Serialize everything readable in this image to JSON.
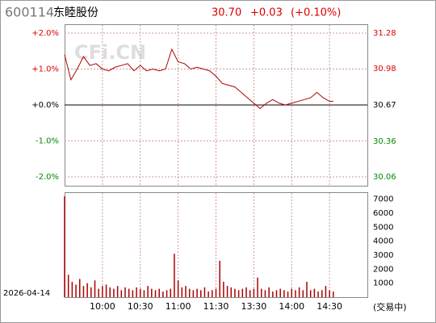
{
  "chart_data": {
    "type": "line",
    "code": "600114",
    "name": "东睦股份",
    "price": "30.70",
    "change": "+0.03",
    "change_pct": "(+0.10%)",
    "watermark": "CFi.CN",
    "date": "2026-04-14",
    "status": "(交易中)",
    "color": "#b00000",
    "xlim": [
      0,
      240
    ],
    "xticks": [
      {
        "value": 30,
        "label": "10:00"
      },
      {
        "value": 60,
        "label": "10:30"
      },
      {
        "value": 90,
        "label": "11:00"
      },
      {
        "value": 120,
        "label": "11:30"
      },
      {
        "value": 150,
        "label": "13:30"
      },
      {
        "value": 180,
        "label": "14:00"
      },
      {
        "value": 210,
        "label": "14:30"
      }
    ],
    "ylim": [
      -2,
      2
    ],
    "yticks": [
      {
        "value": 2,
        "label": "+2.0%"
      },
      {
        "value": 1,
        "label": "+1.0%"
      },
      {
        "value": 0,
        "label": "+0.0%"
      },
      {
        "value": -1,
        "label": "-1.0%"
      },
      {
        "value": -2,
        "label": "-2.0%"
      }
    ],
    "y2lim": [
      30.06,
      31.28
    ],
    "y2ticks": [
      31.28,
      30.98,
      30.67,
      30.36,
      30.06
    ],
    "x": [
      0,
      5,
      10,
      15,
      20,
      25,
      30,
      35,
      40,
      45,
      50,
      55,
      60,
      65,
      70,
      75,
      80,
      85,
      90,
      95,
      100,
      105,
      110,
      115,
      120,
      125,
      130,
      135,
      140,
      145,
      150,
      155,
      160,
      165,
      170,
      175,
      180,
      185,
      190,
      195,
      200,
      205,
      210,
      213
    ],
    "values": [
      1.4,
      0.7,
      1.0,
      1.35,
      1.1,
      1.15,
      1.0,
      0.95,
      1.05,
      1.1,
      1.15,
      0.95,
      1.1,
      0.95,
      1.0,
      0.95,
      1.0,
      1.55,
      1.2,
      1.15,
      1.0,
      1.05,
      1.0,
      0.95,
      0.8,
      0.6,
      0.55,
      0.5,
      0.35,
      0.2,
      0.05,
      -0.1,
      0.05,
      0.15,
      0.05,
      0.0,
      0.05,
      0.1,
      0.15,
      0.2,
      0.35,
      0.2,
      0.1,
      0.1
    ],
    "volume": {
      "type": "bar",
      "color": "#aa0000",
      "ylim": [
        0,
        7500
      ],
      "yticks": [
        7000,
        6000,
        5000,
        4000,
        3000,
        2000,
        1000
      ],
      "x": [
        0,
        3,
        6,
        9,
        12,
        15,
        18,
        21,
        24,
        27,
        30,
        33,
        36,
        39,
        42,
        45,
        48,
        51,
        54,
        57,
        60,
        63,
        66,
        69,
        72,
        75,
        78,
        81,
        84,
        87,
        90,
        93,
        96,
        99,
        102,
        105,
        108,
        111,
        114,
        117,
        120,
        123,
        126,
        129,
        132,
        135,
        138,
        141,
        144,
        147,
        150,
        153,
        156,
        159,
        162,
        165,
        168,
        171,
        174,
        177,
        180,
        183,
        186,
        189,
        192,
        195,
        198,
        201,
        204,
        207,
        210,
        213
      ],
      "values": [
        7200,
        1600,
        1100,
        900,
        1300,
        800,
        1000,
        700,
        1200,
        600,
        800,
        900,
        700,
        600,
        800,
        500,
        700,
        600,
        500,
        700,
        600,
        500,
        800,
        600,
        500,
        600,
        400,
        500,
        600,
        3100,
        1200,
        700,
        800,
        600,
        500,
        600,
        500,
        700,
        400,
        500,
        600,
        2600,
        1100,
        800,
        700,
        600,
        500,
        600,
        700,
        500,
        600,
        1400,
        600,
        500,
        700,
        400,
        500,
        600,
        500,
        400,
        600,
        500,
        700,
        500,
        1100,
        500,
        600,
        400,
        500,
        800,
        500,
        400
      ]
    }
  }
}
